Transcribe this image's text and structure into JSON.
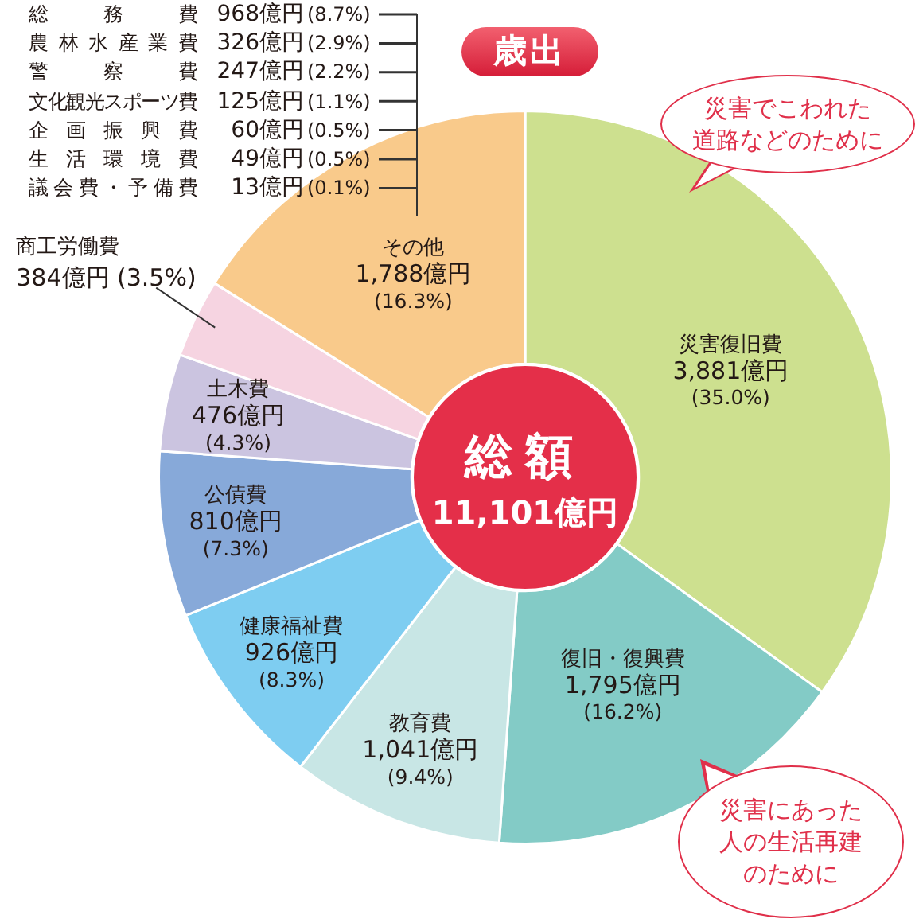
{
  "chart_data": {
    "type": "donut",
    "title": "歳出",
    "subtitle": "総額\n11,101億円",
    "categories": [
      "災害復旧費",
      "復旧・復興費",
      "教育費",
      "健康福祉費",
      "公債費",
      "土木費",
      "商工労働費",
      "その他"
    ],
    "values": [
      3881,
      1795,
      1041,
      926,
      810,
      476,
      384,
      1788
    ],
    "colors": [
      "#cde08f",
      "#83cbc6",
      "#c8e6e5",
      "#7ecdf1",
      "#87a9d9",
      "#cbc4e0",
      "#f6d4e1",
      "#f9ca8b"
    ],
    "value_labels": [
      "3,881億円\n(35.0%)",
      "1,795億円\n(16.2%)",
      "1,041億円\n(9.4%)",
      "926億円\n(8.3%)",
      "810億円\n(7.3%)",
      "476億円\n(4.3%)",
      "384億円 (3.5%)",
      "1,788億円\n(16.3%)"
    ],
    "annotations": [
      "災害でこわれた道路などのために",
      "災害にあった人の生活再建のために",
      "総務費 968億円(8.7%)",
      "農林水産業費 326億円(2.9%)",
      "警察費 247億円(2.2%)",
      "文化観光スポーツ費 125億円(1.1%)",
      "企画振興費 60億円(0.5%)",
      "生活環境費 49億円(0.5%)",
      "議会費・予備費 13億円(0.1%)"
    ]
  }
}
